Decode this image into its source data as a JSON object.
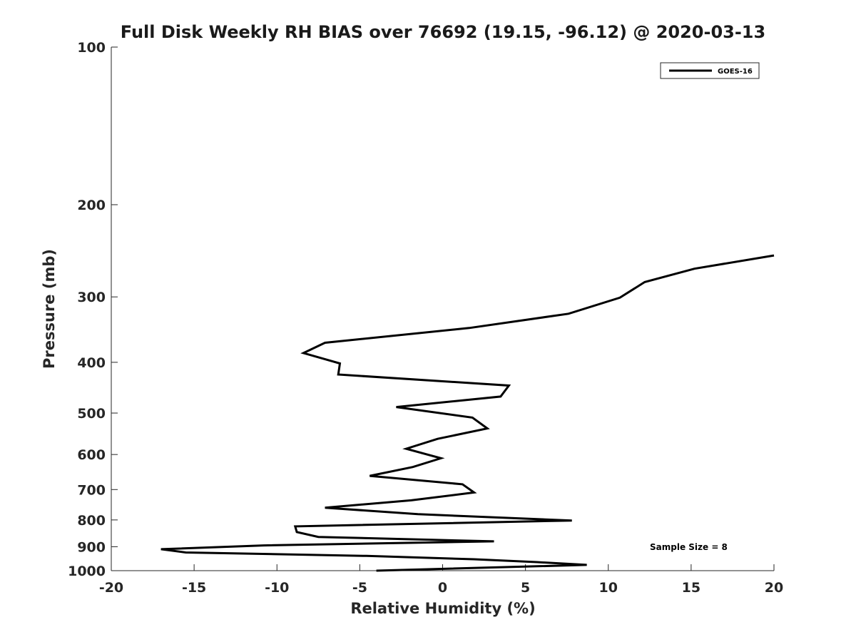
{
  "chart_data": {
    "type": "line",
    "title": "Full Disk Weekly RH BIAS over 76692 (19.15, -96.12) @ 2020-03-13",
    "xlabel": "Relative Humidity (%)",
    "ylabel": "Pressure (mb)",
    "xlim": [
      -20,
      20
    ],
    "ylim": [
      100,
      1000
    ],
    "y_scale": "log",
    "y_reversed": true,
    "x_ticks": [
      -20,
      -15,
      -10,
      -5,
      0,
      5,
      10,
      15,
      20
    ],
    "y_ticks": [
      100,
      200,
      300,
      400,
      500,
      600,
      700,
      800,
      900,
      1000
    ],
    "grid": false,
    "legend_position": "top-right",
    "annotation": "Sample Size = 8",
    "series": [
      {
        "name": "GOES-16",
        "color": "#000000",
        "points": [
          {
            "x": 20.0,
            "y": 250
          },
          {
            "x": 15.2,
            "y": 265
          },
          {
            "x": 12.2,
            "y": 281
          },
          {
            "x": 10.7,
            "y": 301
          },
          {
            "x": 7.6,
            "y": 323
          },
          {
            "x": 1.6,
            "y": 344
          },
          {
            "x": -7.1,
            "y": 367
          },
          {
            "x": -8.4,
            "y": 384
          },
          {
            "x": -6.2,
            "y": 402
          },
          {
            "x": -6.3,
            "y": 422
          },
          {
            "x": 4.0,
            "y": 443
          },
          {
            "x": 3.5,
            "y": 465
          },
          {
            "x": -2.8,
            "y": 487
          },
          {
            "x": 1.8,
            "y": 510
          },
          {
            "x": 2.7,
            "y": 535
          },
          {
            "x": -0.3,
            "y": 560
          },
          {
            "x": -2.2,
            "y": 585
          },
          {
            "x": -0.1,
            "y": 610
          },
          {
            "x": -1.8,
            "y": 634
          },
          {
            "x": -4.4,
            "y": 659
          },
          {
            "x": 1.2,
            "y": 684
          },
          {
            "x": 1.9,
            "y": 709
          },
          {
            "x": -1.9,
            "y": 734
          },
          {
            "x": -7.1,
            "y": 758
          },
          {
            "x": -1.5,
            "y": 780
          },
          {
            "x": 7.8,
            "y": 802
          },
          {
            "x": -8.9,
            "y": 823
          },
          {
            "x": -8.8,
            "y": 844
          },
          {
            "x": -7.5,
            "y": 862
          },
          {
            "x": 3.1,
            "y": 879
          },
          {
            "x": -10.8,
            "y": 895
          },
          {
            "x": -17.0,
            "y": 910
          },
          {
            "x": -15.5,
            "y": 923
          },
          {
            "x": -4.6,
            "y": 937
          },
          {
            "x": 1.9,
            "y": 951
          },
          {
            "x": 5.7,
            "y": 963
          },
          {
            "x": 8.7,
            "y": 975
          },
          {
            "x": -4.0,
            "y": 1000
          }
        ]
      }
    ]
  }
}
